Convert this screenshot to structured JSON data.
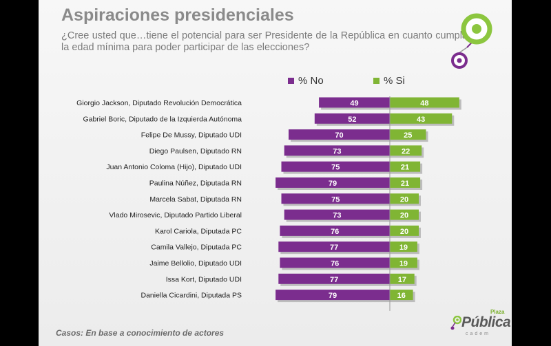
{
  "slide": {
    "title": "Aspiraciones presidenciales",
    "subtitle": "¿Cree usted que…tiene el potencial para ser Presidente de la República en cuanto cumpla la edad mínima para poder participar de las elecciones?",
    "footnote": "Casos: En base a conocimiento de actores"
  },
  "logo": {
    "main": "Pública",
    "top": "Plaza",
    "sub": "cadem"
  },
  "colors": {
    "no": "#7b2d8e",
    "si": "#80b534",
    "accent_green": "#8cc63f",
    "accent_purple": "#7b2d8e"
  },
  "chart_data": {
    "type": "bar",
    "orientation": "horizontal-diverging",
    "legend_position": "top",
    "categories": [
      "Giorgio Jackson, Diputado Revolución Democrática",
      "Gabriel Boric, Diputado de la Izquierda Autónoma",
      "Felipe De Mussy, Diputado UDI",
      "Diego Paulsen, Diputado RN",
      "Juan Antonio Coloma (Hijo), Diputado UDI",
      "Paulina Núñez, Diputada RN",
      "Marcela Sabat, Diputada RN",
      "Vlado Mirosevic, Diputado Partido Liberal",
      "Karol Cariola, Diputada PC",
      "Camila Vallejo, Diputada PC",
      "Jaime Bellolio, Diputado UDI",
      "Issa Kort, Diputado UDI",
      "Daniella Cicardini, Diputada PS"
    ],
    "series": [
      {
        "name": "% No",
        "values": [
          49,
          52,
          70,
          73,
          75,
          79,
          75,
          73,
          76,
          77,
          76,
          77,
          79
        ]
      },
      {
        "name": "% Si",
        "values": [
          48,
          43,
          25,
          22,
          21,
          21,
          20,
          20,
          20,
          19,
          19,
          17,
          16
        ]
      }
    ]
  }
}
